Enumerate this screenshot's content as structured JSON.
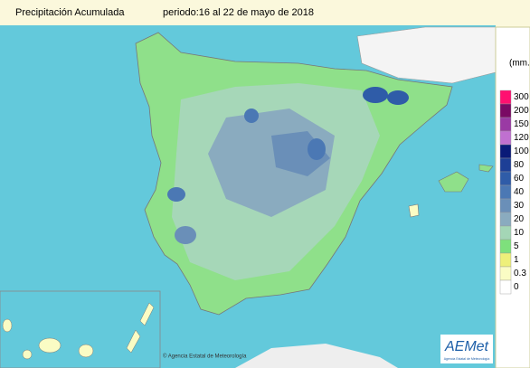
{
  "header": {
    "title": "Precipitación Acumulada",
    "period": "periodo:16 al 22 de mayo de 2018"
  },
  "legend": {
    "unit": "(mm.",
    "items": [
      {
        "value": 300,
        "color": "#ff1070"
      },
      {
        "value": 200,
        "color": "#7a0a64"
      },
      {
        "value": 150,
        "color": "#9a3aa4"
      },
      {
        "value": 120,
        "color": "#c070d0"
      },
      {
        "value": 100,
        "color": "#0a1a78"
      },
      {
        "value": 80,
        "color": "#1d3f96"
      },
      {
        "value": 60,
        "color": "#2f5ca8"
      },
      {
        "value": 40,
        "color": "#4b78b4"
      },
      {
        "value": 30,
        "color": "#6a8fb8"
      },
      {
        "value": 20,
        "color": "#8aabbf"
      },
      {
        "value": 10,
        "color": "#a4d6b6"
      },
      {
        "value": 5,
        "color": "#7ee07c"
      },
      {
        "value": 1,
        "color": "#eef07a"
      },
      {
        "value": 0.3,
        "color": "#fafcc4"
      },
      {
        "value": 0,
        "color": "#ffffff"
      }
    ]
  },
  "footer": {
    "credit": "© Agencia Estatal de Meteorología",
    "logo": "AEMet",
    "logo_sub": "Agencia Estatal de Meteorología"
  }
}
